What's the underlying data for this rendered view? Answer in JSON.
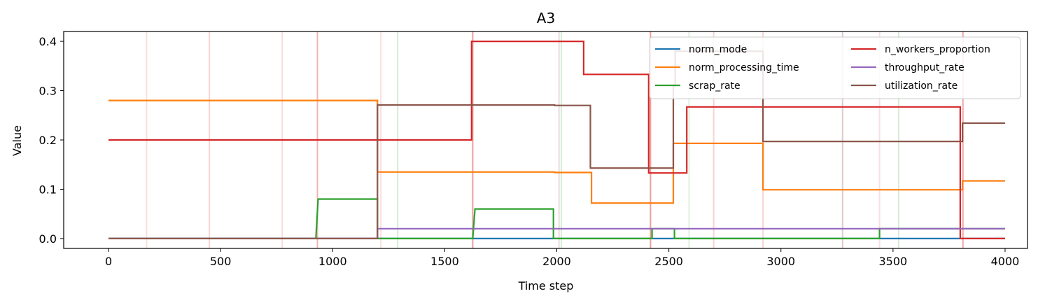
{
  "chart_data": {
    "type": "line",
    "title": "A3",
    "xlabel": "Time step",
    "ylabel": "Value",
    "xlim": [
      -200,
      4100
    ],
    "ylim": [
      -0.02,
      0.42
    ],
    "xticks": [
      0,
      500,
      1000,
      1500,
      2000,
      2500,
      3000,
      3500,
      4000
    ],
    "yticks": [
      0.0,
      0.1,
      0.2,
      0.3,
      0.4
    ],
    "xtick_labels": [
      "0",
      "500",
      "1000",
      "1500",
      "2000",
      "2500",
      "3000",
      "3500",
      "4000"
    ],
    "ytick_labels": [
      "0.0",
      "0.1",
      "0.2",
      "0.3",
      "0.4"
    ],
    "grid": false,
    "legend_position": "top-right",
    "legend_columns": 2,
    "series": [
      {
        "name": "norm_mode",
        "color": "#1f77b4",
        "points": [
          [
            0,
            0.0
          ],
          [
            4000,
            0.0
          ]
        ]
      },
      {
        "name": "norm_processing_time",
        "color": "#ff7f0e",
        "points": [
          [
            0,
            0.28
          ],
          [
            1200,
            0.28
          ],
          [
            1200,
            0.135
          ],
          [
            1990,
            0.135
          ],
          [
            1990,
            0.134
          ],
          [
            2155,
            0.134
          ],
          [
            2155,
            0.072
          ],
          [
            2520,
            0.072
          ],
          [
            2520,
            0.193
          ],
          [
            2920,
            0.193
          ],
          [
            2920,
            0.099
          ],
          [
            3810,
            0.099
          ],
          [
            3810,
            0.117
          ],
          [
            4000,
            0.117
          ]
        ]
      },
      {
        "name": "scrap_rate",
        "color": "#2ca02c",
        "points": [
          [
            0,
            0.0
          ],
          [
            925,
            0.0
          ],
          [
            935,
            0.08
          ],
          [
            1200,
            0.08
          ],
          [
            1200,
            0.0
          ],
          [
            1625,
            0.0
          ],
          [
            1635,
            0.06
          ],
          [
            1985,
            0.06
          ],
          [
            1985,
            0.0
          ],
          [
            2425,
            0.0
          ],
          [
            2425,
            0.02
          ],
          [
            2525,
            0.02
          ],
          [
            2525,
            0.0
          ],
          [
            3440,
            0.0
          ],
          [
            3440,
            0.02
          ],
          [
            4000,
            0.02
          ]
        ]
      },
      {
        "name": "n_workers_proportion",
        "color": "#d62728",
        "points": [
          [
            0,
            0.2
          ],
          [
            1620,
            0.2
          ],
          [
            1620,
            0.4
          ],
          [
            2120,
            0.4
          ],
          [
            2120,
            0.333
          ],
          [
            2410,
            0.333
          ],
          [
            2410,
            0.133
          ],
          [
            2580,
            0.133
          ],
          [
            2580,
            0.267
          ],
          [
            3800,
            0.267
          ],
          [
            3800,
            0.0
          ],
          [
            4000,
            0.0
          ]
        ]
      },
      {
        "name": "throughput_rate",
        "color": "#9467bd",
        "points": [
          [
            0,
            0.0
          ],
          [
            1200,
            0.0
          ],
          [
            1200,
            0.02
          ],
          [
            4000,
            0.02
          ]
        ]
      },
      {
        "name": "utilization_rate",
        "color": "#8c564b",
        "points": [
          [
            0,
            0.0
          ],
          [
            1200,
            0.0
          ],
          [
            1200,
            0.271
          ],
          [
            1990,
            0.271
          ],
          [
            1990,
            0.27
          ],
          [
            2150,
            0.27
          ],
          [
            2150,
            0.143
          ],
          [
            2520,
            0.143
          ],
          [
            2520,
            0.31
          ],
          [
            2528,
            0.31
          ],
          [
            2528,
            0.38
          ],
          [
            2540,
            0.38
          ],
          [
            2910,
            0.38
          ],
          [
            2920,
            0.38
          ],
          [
            2920,
            0.197
          ],
          [
            3810,
            0.197
          ],
          [
            3810,
            0.234
          ],
          [
            4000,
            0.234
          ]
        ]
      }
    ],
    "vertical_markers": [
      {
        "x": 170,
        "color": "#d62728",
        "alpha": 0.15
      },
      {
        "x": 450,
        "color": "#d62728",
        "alpha": 0.2
      },
      {
        "x": 775,
        "color": "#d62728",
        "alpha": 0.15
      },
      {
        "x": 932,
        "color": "#d62728",
        "alpha": 0.35
      },
      {
        "x": 1215,
        "color": "#d62728",
        "alpha": 0.15
      },
      {
        "x": 1290,
        "color": "#2ca02c",
        "alpha": 0.2
      },
      {
        "x": 1625,
        "color": "#d62728",
        "alpha": 0.45
      },
      {
        "x": 2010,
        "color": "#8c564b",
        "alpha": 0.2
      },
      {
        "x": 2020,
        "color": "#2ca02c",
        "alpha": 0.2
      },
      {
        "x": 2418,
        "color": "#d62728",
        "alpha": 0.45
      },
      {
        "x": 2590,
        "color": "#2ca02c",
        "alpha": 0.15
      },
      {
        "x": 2700,
        "color": "#d62728",
        "alpha": 0.2
      },
      {
        "x": 2920,
        "color": "#d62728",
        "alpha": 0.2
      },
      {
        "x": 3275,
        "color": "#8c564b",
        "alpha": 0.3
      },
      {
        "x": 3440,
        "color": "#d62728",
        "alpha": 0.15
      },
      {
        "x": 3525,
        "color": "#2ca02c",
        "alpha": 0.2
      },
      {
        "x": 3812,
        "color": "#d62728",
        "alpha": 0.4
      }
    ]
  }
}
